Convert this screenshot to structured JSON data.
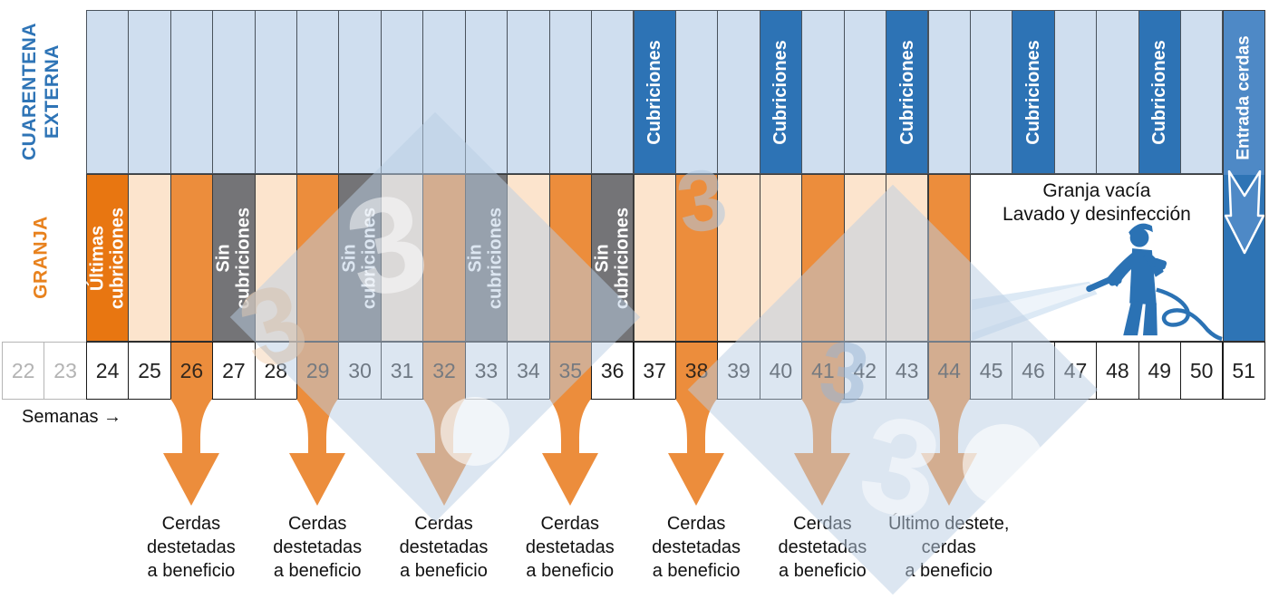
{
  "colors": {
    "quarantine_bg": "#cfdeef",
    "cubriciones_blue": "#2d73b5",
    "entry_blue_top": "#4e89c6",
    "entry_blue_bottom": "#2e74b5",
    "quarantine_label_blue": "#2e74b6",
    "farm_label_orange": "#e8821e",
    "dark_orange": "#e87611",
    "orange": "#ec8d3c",
    "pale_orange": "#fce4cd",
    "no_breeding_gray": "#747477",
    "watermark_blue": "#bacde1"
  },
  "quarantine": {
    "row_label": "CUARENTENA\nEXTERNA",
    "cubriciones_label": "Cubriciones",
    "cubriciones_weeks": [
      37,
      40,
      43,
      46,
      49
    ],
    "entry_label": "Entrada cerdas",
    "entry_week": 51
  },
  "farm": {
    "row_label": "GRANJA",
    "last_breedings_label": "Últimas\ncubriciones",
    "last_breedings_week": 24,
    "no_breedings_label": "Sin\ncubriciones",
    "no_breedings_weeks": [
      27,
      30,
      33,
      36
    ],
    "orange_weeks": [
      26,
      29,
      32,
      35,
      38,
      41,
      44
    ],
    "pale_weeks": [
      25,
      28,
      31,
      34,
      37,
      39,
      40,
      42,
      43
    ],
    "empty_weeks_range": [
      45,
      50
    ],
    "empty_label": "Granja vacía\nLavado y desinfección"
  },
  "weeks": {
    "axis_label": "Semanas →",
    "numbers": [
      22,
      23,
      24,
      25,
      26,
      27,
      28,
      29,
      30,
      31,
      32,
      33,
      34,
      35,
      36,
      37,
      38,
      39,
      40,
      41,
      42,
      43,
      44,
      45,
      46,
      47,
      48,
      49,
      50,
      51
    ],
    "faded_weeks": [
      22,
      23
    ],
    "highlight_weeks": [
      26,
      29,
      32,
      35,
      38,
      41,
      44
    ]
  },
  "events": [
    {
      "week": 26,
      "label": "Cerdas\ndestetadas\na beneficio"
    },
    {
      "week": 29,
      "label": "Cerdas\ndestetadas\na beneficio"
    },
    {
      "week": 32,
      "label": "Cerdas\ndestetadas\na beneficio"
    },
    {
      "week": 35,
      "label": "Cerdas\ndestetadas\na beneficio"
    },
    {
      "week": 38,
      "label": "Cerdas\ndestetadas\na beneficio"
    },
    {
      "week": 41,
      "label": "Cerdas\ndestetadas\na beneficio"
    },
    {
      "week": 44,
      "label": "Último destete,\ncerdas\na beneficio"
    }
  ],
  "watermark": {
    "glyph": "3"
  },
  "icons": {
    "washer": "pressure-washer-icon",
    "entry_arrow": "down-arrow-icon",
    "wean_arrow": "wean-down-arrow-icon"
  }
}
